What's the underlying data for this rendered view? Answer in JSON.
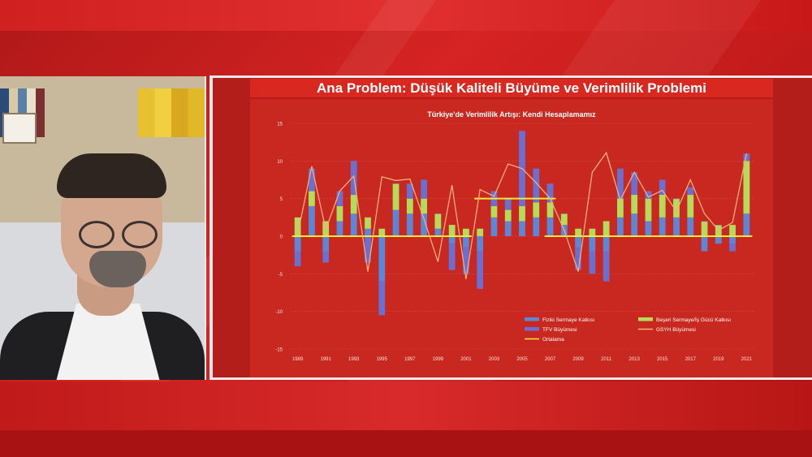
{
  "slide": {
    "title": "Ana Problem: Düşük Kaliteli Büyüme ve Verimlilik Problemi"
  },
  "chart_data": {
    "type": "bar",
    "title": "Türkiye'de Verimlilik Artışı: Kendi Hesaplamamız",
    "ylim": [
      -15,
      15
    ],
    "yticks": [
      15,
      10,
      5,
      0,
      -5,
      -10,
      -15
    ],
    "years": [
      1989,
      1990,
      1991,
      1992,
      1993,
      1994,
      1995,
      1996,
      1997,
      1998,
      1999,
      2000,
      2001,
      2002,
      2003,
      2004,
      2005,
      2006,
      2007,
      2008,
      2009,
      2010,
      2011,
      2012,
      2013,
      2014,
      2015,
      2016,
      2017,
      2018,
      2019,
      2020,
      2021
    ],
    "tick_labels": [
      "1989",
      "1991",
      "1993",
      "1995",
      "1997",
      "1999",
      "2001",
      "2003",
      "2005",
      "2007",
      "2009",
      "2011",
      "2013",
      "2015",
      "2017",
      "2019",
      "2021"
    ],
    "series": [
      {
        "name": "Fiziki Sermaye Katkısı",
        "color": "#5b87d6",
        "values": [
          -2,
          4,
          -2,
          2,
          3,
          1,
          -6,
          3.5,
          3,
          3,
          1,
          -1,
          -1.5,
          -2,
          2.5,
          2,
          2,
          2.5,
          2.5,
          1.5,
          -1.5,
          -2,
          -2,
          2.5,
          3,
          2,
          2.5,
          2.5,
          2.5,
          -2,
          -1,
          -1,
          3
        ]
      },
      {
        "name": "Beşeri Sermaye/İş Gücü Katkısı",
        "color": "#b4dc5a",
        "values": [
          2.5,
          2,
          2,
          2,
          2.5,
          1.5,
          1,
          3.5,
          2,
          2,
          2,
          1.5,
          1,
          1,
          1.5,
          1.5,
          2,
          2,
          2,
          1.5,
          1,
          1,
          2,
          2.5,
          2.5,
          3,
          3,
          2.5,
          3,
          2,
          1.5,
          1.5,
          7
        ]
      },
      {
        "name": "TFV Büyümesi",
        "color": "#6a6fd0",
        "values": [
          -2,
          3,
          -1.5,
          2,
          4.5,
          -3.5,
          -4.5,
          0,
          2,
          2.5,
          0,
          -3.5,
          -3.5,
          -5,
          2,
          1.5,
          10,
          4.5,
          2.5,
          0,
          -3,
          -3,
          -4,
          4,
          3,
          1,
          2,
          0,
          1,
          0,
          0,
          -1,
          1
        ]
      },
      {
        "name": "GSYH Büyümesi",
        "color": "#f0b07a",
        "values": [
          0.3,
          9.3,
          0.9,
          6,
          8,
          -4.7,
          7.9,
          7.4,
          7.6,
          2.3,
          -3.4,
          6.8,
          -5.7,
          6.2,
          5.3,
          9.6,
          9,
          7.1,
          5,
          0.8,
          -4.7,
          8.5,
          11.1,
          4.8,
          8.5,
          5.2,
          6.1,
          3.3,
          7.5,
          3,
          0.8,
          1.8,
          11
        ]
      },
      {
        "name": "Ortalama",
        "color": "#f2ea3a"
      }
    ],
    "average_lines": [
      {
        "from": 1989,
        "to": 2001,
        "value": 0
      },
      {
        "from": 2002,
        "to": 2007,
        "value": 5
      },
      {
        "from": 2007,
        "to": 2021,
        "value": 0
      }
    ],
    "legend_position": "bottom-right"
  }
}
